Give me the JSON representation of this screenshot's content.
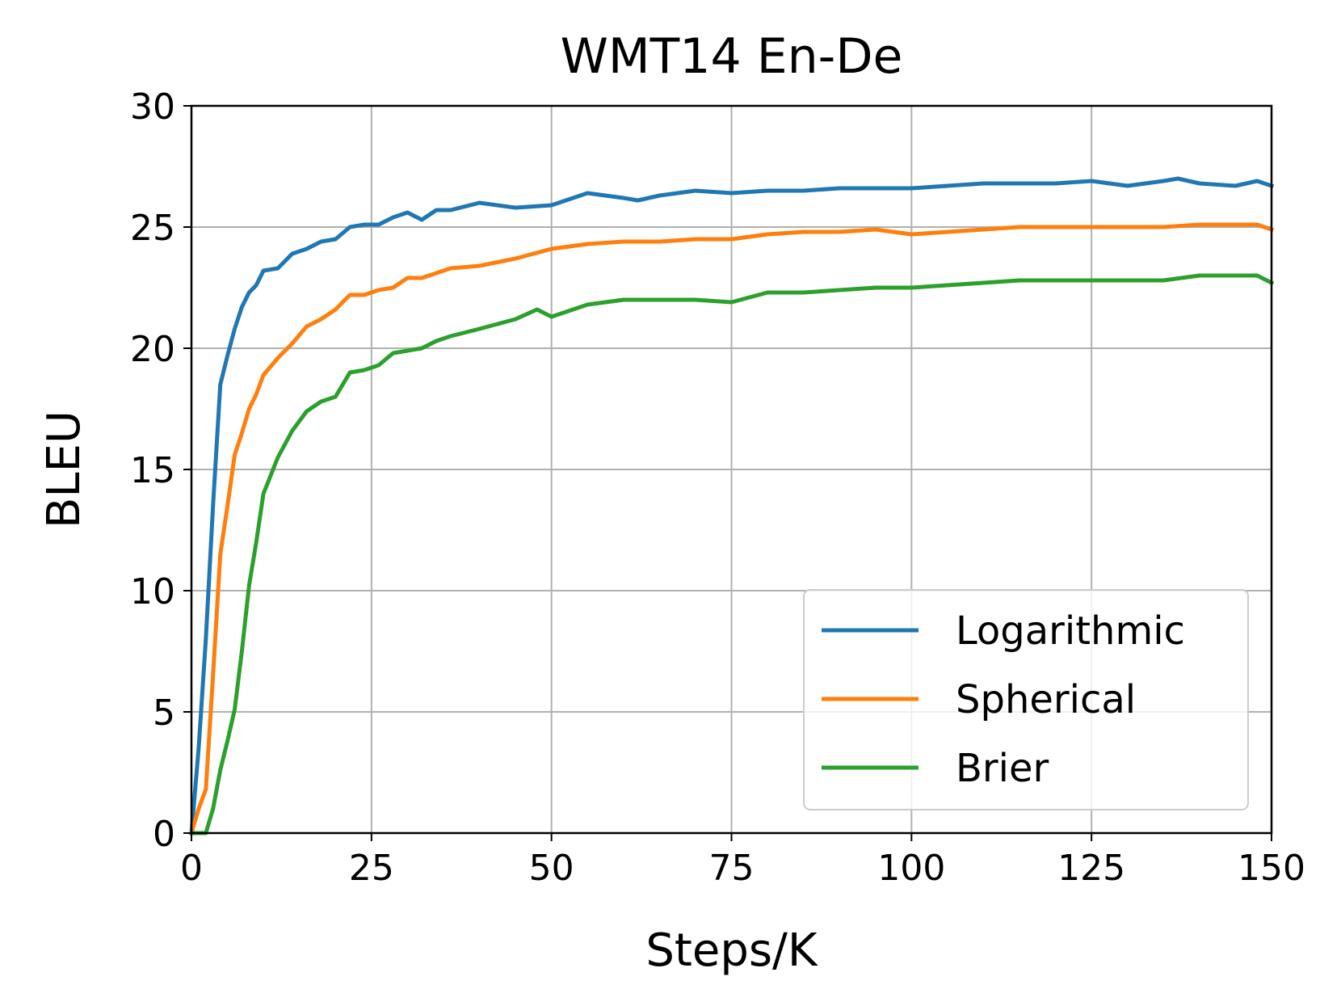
{
  "chart_data": {
    "type": "line",
    "title": "WMT14 En-De",
    "xlabel": "Steps/K",
    "ylabel": "BLEU",
    "xlim": [
      0,
      150
    ],
    "ylim": [
      0,
      30
    ],
    "xticks": [
      0,
      25,
      50,
      75,
      100,
      125,
      150
    ],
    "xtick_labels": [
      "0",
      "25",
      "50",
      "75",
      "100",
      "125",
      "150"
    ],
    "yticks": [
      0,
      5,
      10,
      15,
      20,
      25,
      30
    ],
    "ytick_labels": [
      "0",
      "5",
      "10",
      "15",
      "20",
      "25",
      "30"
    ],
    "grid": true,
    "legend_position": "lower right",
    "series": [
      {
        "name": "Logarithmic",
        "color": "#1f77b4",
        "x": [
          0,
          1,
          2,
          3,
          4,
          5,
          6,
          7,
          8,
          9,
          10,
          12,
          14,
          16,
          18,
          20,
          22,
          24,
          26,
          28,
          30,
          32,
          34,
          36,
          40,
          45,
          50,
          55,
          60,
          62,
          65,
          70,
          75,
          80,
          85,
          90,
          95,
          100,
          105,
          110,
          115,
          120,
          125,
          130,
          135,
          137,
          140,
          145,
          148,
          150
        ],
        "y": [
          0,
          3.5,
          8,
          13.5,
          18.5,
          19.7,
          20.8,
          21.7,
          22.3,
          22.6,
          23.2,
          23.3,
          23.9,
          24.1,
          24.4,
          24.5,
          25.0,
          25.1,
          25.1,
          25.4,
          25.6,
          25.3,
          25.7,
          25.7,
          26.0,
          25.8,
          25.9,
          26.4,
          26.2,
          26.1,
          26.3,
          26.5,
          26.4,
          26.5,
          26.5,
          26.6,
          26.6,
          26.6,
          26.7,
          26.8,
          26.8,
          26.8,
          26.9,
          26.7,
          26.9,
          27.0,
          26.8,
          26.7,
          26.9,
          26.7
        ]
      },
      {
        "name": "Spherical",
        "color": "#ff7f0e",
        "x": [
          0,
          1,
          2,
          3,
          4,
          5,
          6,
          7,
          8,
          9,
          10,
          12,
          14,
          16,
          18,
          20,
          22,
          24,
          26,
          28,
          30,
          32,
          34,
          36,
          40,
          45,
          50,
          55,
          60,
          65,
          70,
          75,
          80,
          85,
          90,
          95,
          100,
          105,
          110,
          115,
          120,
          125,
          130,
          135,
          140,
          145,
          148,
          150
        ],
        "y": [
          0,
          1,
          1.8,
          6.5,
          11.5,
          13.5,
          15.6,
          16.5,
          17.5,
          18.1,
          18.9,
          19.6,
          20.2,
          20.9,
          21.2,
          21.6,
          22.2,
          22.2,
          22.4,
          22.5,
          22.9,
          22.9,
          23.1,
          23.3,
          23.4,
          23.7,
          24.1,
          24.3,
          24.4,
          24.4,
          24.5,
          24.5,
          24.7,
          24.8,
          24.8,
          24.9,
          24.7,
          24.8,
          24.9,
          25.0,
          25.0,
          25.0,
          25.0,
          25.0,
          25.1,
          25.1,
          25.1,
          24.9
        ]
      },
      {
        "name": "Brier",
        "color": "#2ca02c",
        "x": [
          0,
          1,
          2,
          3,
          4,
          5,
          6,
          7,
          8,
          9,
          10,
          12,
          14,
          16,
          18,
          20,
          22,
          24,
          26,
          28,
          30,
          32,
          34,
          36,
          40,
          45,
          48,
          50,
          55,
          60,
          65,
          70,
          75,
          80,
          85,
          90,
          95,
          100,
          105,
          110,
          115,
          120,
          125,
          130,
          135,
          140,
          145,
          148,
          150
        ],
        "y": [
          0,
          0,
          0,
          1.0,
          2.6,
          3.8,
          5.1,
          7.5,
          10.2,
          12.0,
          14.0,
          15.5,
          16.6,
          17.4,
          17.8,
          18.0,
          19.0,
          19.1,
          19.3,
          19.8,
          19.9,
          20.0,
          20.3,
          20.5,
          20.8,
          21.2,
          21.6,
          21.3,
          21.8,
          22.0,
          22.0,
          22.0,
          21.9,
          22.3,
          22.3,
          22.4,
          22.5,
          22.5,
          22.6,
          22.7,
          22.8,
          22.8,
          22.8,
          22.8,
          22.8,
          23.0,
          23.0,
          23.0,
          22.7
        ]
      }
    ]
  }
}
